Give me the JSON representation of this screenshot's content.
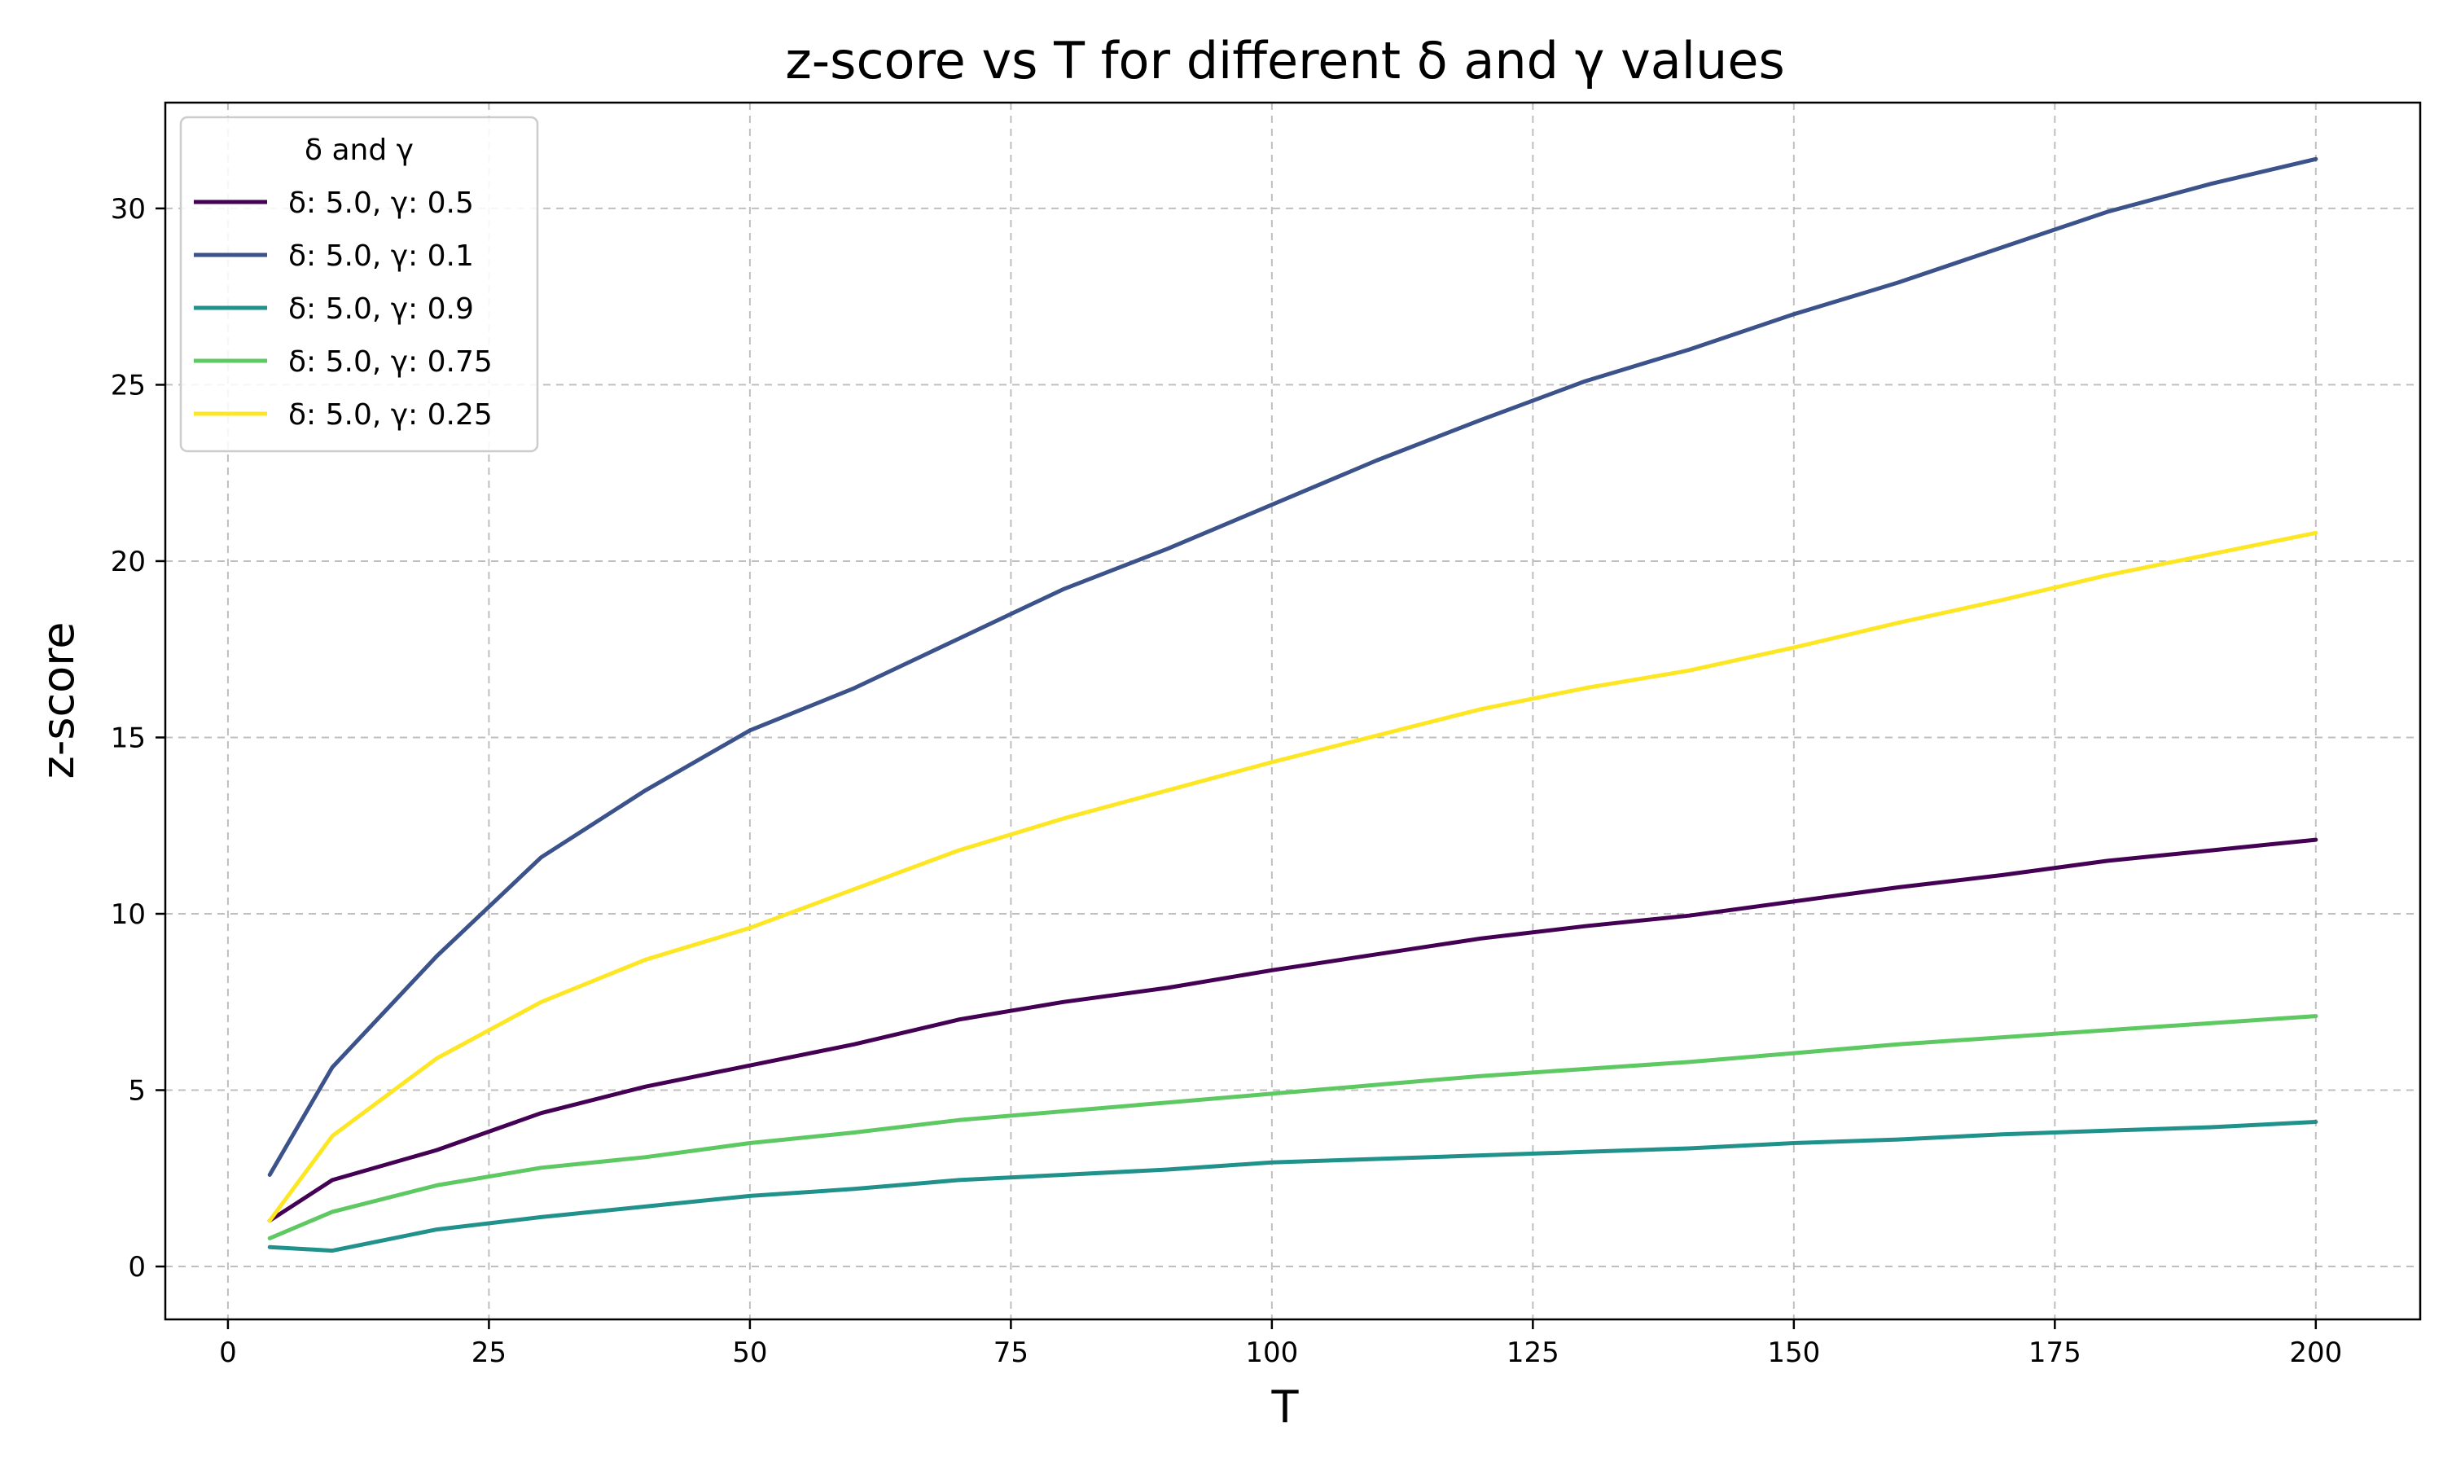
{
  "chart_data": {
    "type": "line",
    "title": "z-score vs T for different δ and γ values",
    "xlabel": "T",
    "ylabel": "z-score",
    "xlim": [
      -6,
      210
    ],
    "ylim": [
      -1.5,
      33
    ],
    "xticks": [
      0,
      25,
      50,
      75,
      100,
      125,
      150,
      175,
      200
    ],
    "yticks": [
      0,
      5,
      10,
      15,
      20,
      25,
      30
    ],
    "grid": true,
    "legend": {
      "title": "δ and γ",
      "placement": "top-left"
    },
    "x": [
      4,
      10,
      20,
      30,
      40,
      50,
      60,
      70,
      80,
      90,
      100,
      110,
      120,
      130,
      140,
      150,
      160,
      170,
      180,
      190,
      200
    ],
    "series": [
      {
        "name": "δ: 5.0, γ: 0.5",
        "color": "#440154",
        "values": [
          1.3,
          2.45,
          3.3,
          4.35,
          5.1,
          5.7,
          6.3,
          7.0,
          7.5,
          7.9,
          8.4,
          8.85,
          9.3,
          9.65,
          9.95,
          10.35,
          10.75,
          11.1,
          11.5,
          11.8,
          12.1
        ]
      },
      {
        "name": "δ: 5.0, γ: 0.1",
        "color": "#3b528b",
        "values": [
          2.6,
          5.65,
          8.8,
          11.6,
          13.5,
          15.2,
          16.4,
          17.8,
          19.2,
          20.35,
          21.6,
          22.85,
          24.0,
          25.1,
          26.0,
          27.0,
          27.9,
          28.9,
          29.9,
          30.7,
          31.4
        ]
      },
      {
        "name": "δ: 5.0, γ: 0.9",
        "color": "#21918c",
        "values": [
          0.55,
          0.45,
          1.05,
          1.4,
          1.7,
          2.0,
          2.2,
          2.45,
          2.6,
          2.75,
          2.95,
          3.05,
          3.15,
          3.25,
          3.35,
          3.5,
          3.6,
          3.75,
          3.85,
          3.95,
          4.1
        ]
      },
      {
        "name": "δ: 5.0, γ: 0.75",
        "color": "#5ec962",
        "values": [
          0.8,
          1.55,
          2.3,
          2.8,
          3.1,
          3.5,
          3.8,
          4.15,
          4.4,
          4.65,
          4.9,
          5.15,
          5.4,
          5.6,
          5.8,
          6.05,
          6.3,
          6.5,
          6.7,
          6.9,
          7.1
        ]
      },
      {
        "name": "δ: 5.0, γ: 0.25",
        "color": "#fde725",
        "values": [
          1.3,
          3.7,
          5.9,
          7.5,
          8.7,
          9.6,
          10.7,
          11.8,
          12.7,
          13.5,
          14.3,
          15.05,
          15.8,
          16.4,
          16.9,
          17.55,
          18.25,
          18.9,
          19.6,
          20.2,
          20.8
        ]
      }
    ]
  }
}
